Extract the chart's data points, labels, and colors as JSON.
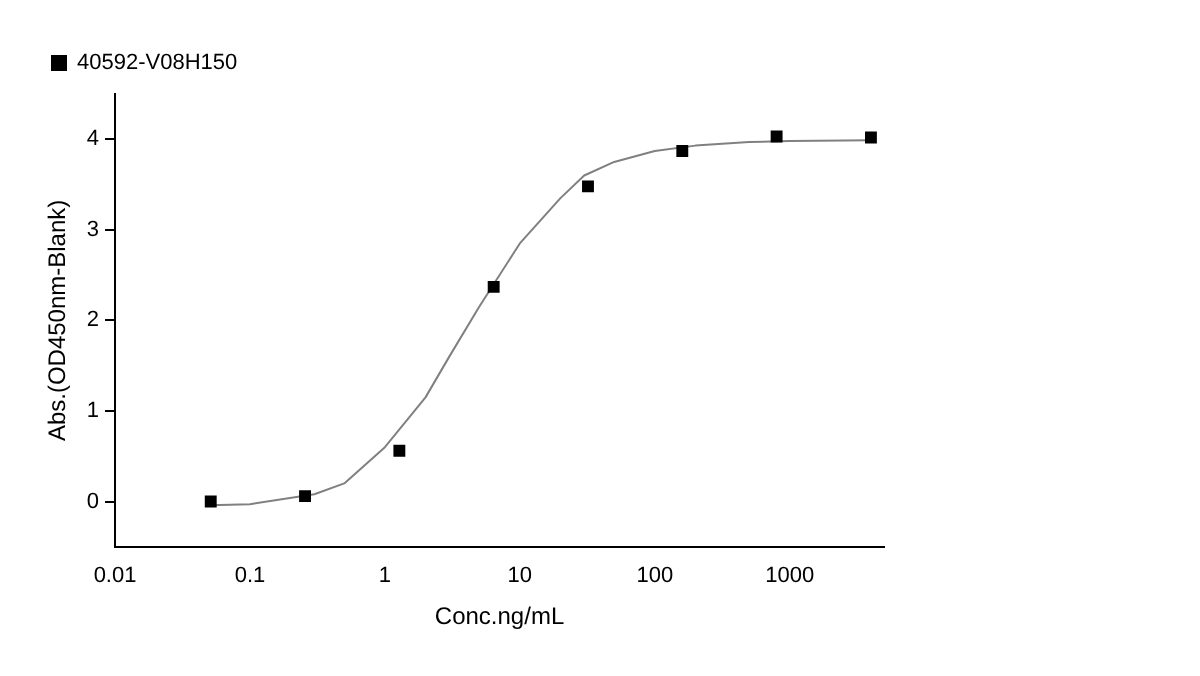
{
  "chart_data": {
    "type": "scatter",
    "xlabel": "Conc.ng/mL",
    "ylabel": "Abs.(OD450nm-Blank)",
    "log": "x",
    "xlim": [
      0.01,
      5000
    ],
    "xticks": [
      0.01,
      0.1,
      1,
      10,
      100,
      1000
    ],
    "ylim": [
      -0.5,
      4.5
    ],
    "yticks": [
      0,
      1,
      2,
      3,
      4
    ],
    "grid": false,
    "legend": "top left",
    "series": [
      {
        "name": "40592-V08H150",
        "color": "#000000",
        "marker": "square",
        "x": [
          0.0512,
          0.256,
          1.28,
          6.4,
          32,
          160,
          800,
          4000
        ],
        "values": [
          0,
          0.06,
          0.56,
          2.37,
          3.48,
          3.87,
          4.03,
          4.02
        ]
      },
      {
        "type": "line",
        "color": "#808080",
        "marker": "none",
        "line_style": "solid",
        "x": [
          0.05,
          0.1,
          0.3,
          0.5,
          1,
          2,
          3,
          5,
          10,
          20,
          30,
          50,
          100,
          200,
          500,
          1000,
          4000
        ],
        "values": [
          -0.04,
          -0.03,
          0.08,
          0.2,
          0.6,
          1.15,
          1.6,
          2.15,
          2.85,
          3.35,
          3.6,
          3.75,
          3.87,
          3.93,
          3.97,
          3.98,
          3.99
        ]
      }
    ]
  }
}
